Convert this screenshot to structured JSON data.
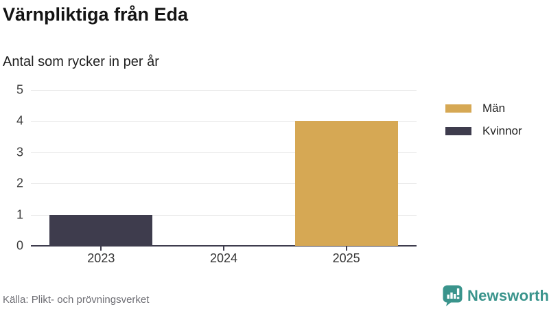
{
  "header": {
    "title": "Värnpliktiga från Eda",
    "subtitle": "Antal som rycker in per år"
  },
  "chart_data": {
    "type": "bar",
    "title": "Värnpliktiga från Eda",
    "subtitle": "Antal som rycker in per år",
    "categories": [
      "2023",
      "2024",
      "2025"
    ],
    "series": [
      {
        "name": "Män",
        "color": "#d6a854",
        "values": [
          0,
          0,
          4
        ]
      },
      {
        "name": "Kvinnor",
        "color": "#3e3c4d",
        "values": [
          1,
          0,
          0
        ]
      }
    ],
    "xlabel": "",
    "ylabel": "",
    "ylim": [
      0,
      5
    ],
    "yticks": [
      0,
      1,
      2,
      3,
      4,
      5
    ],
    "grid": true,
    "legend_position": "right"
  },
  "footer": {
    "source": "Källa: Plikt- och prövningsverket",
    "brand": "Newsworthy"
  },
  "colors": {
    "men_gold": "#d6a854",
    "women_dark": "#3e3c4d",
    "brand_teal": "#3a948c",
    "gridline": "#e5e5e5",
    "axis": "#3e3c4d",
    "source_text": "#6e6e74"
  }
}
